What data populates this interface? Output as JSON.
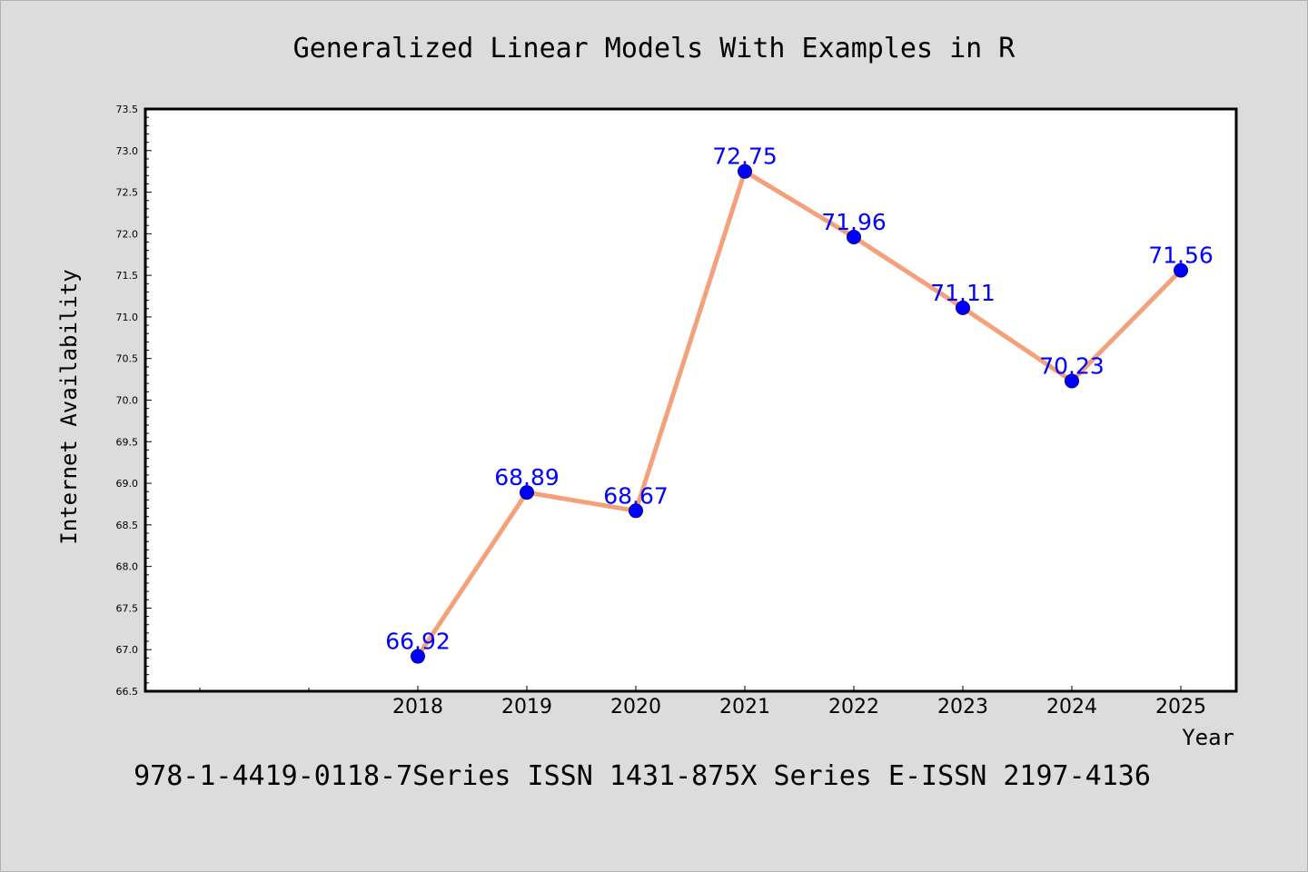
{
  "chart_data": {
    "type": "line",
    "title": "Generalized Linear Models With Examples in R",
    "xlabel": "Year",
    "ylabel": "Internet Availability",
    "footer": "978-1-4419-0118-7Series ISSN 1431-875X Series E-ISSN 2197-4136",
    "categories": [
      "2018",
      "2019",
      "2020",
      "2021",
      "2022",
      "2023",
      "2024",
      "2025"
    ],
    "series": [
      {
        "values": [
          66.92,
          68.89,
          68.67,
          72.75,
          71.96,
          71.11,
          70.23,
          71.56
        ],
        "value_labels": [
          "66.92",
          "68.89",
          "68.67",
          "72.75",
          "71.96",
          "71.11",
          "70.23",
          "71.56"
        ]
      }
    ],
    "ylim": [
      66.5,
      73.5
    ],
    "yticks": [
      "66.5",
      "67.0",
      "67.5",
      "68.0",
      "68.5",
      "69.0",
      "69.5",
      "70.0",
      "70.5",
      "71.0",
      "71.5",
      "72.0",
      "72.5",
      "73.0",
      "73.5"
    ],
    "grid": false,
    "legend": "none",
    "colors": {
      "line": "#f4a07a",
      "marker": "#0000ff",
      "label": "#0000ff",
      "background": "#dcdcdc",
      "plot_background": "#ffffff"
    }
  }
}
